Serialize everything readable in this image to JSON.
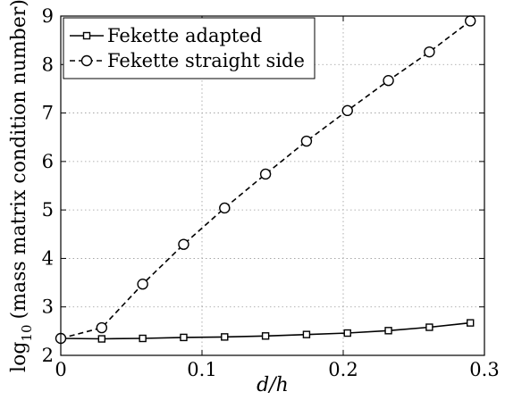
{
  "chart_data": {
    "type": "line",
    "title": "",
    "xlabel": "d/h",
    "ylabel": "log10 (mass matrix condition number)",
    "ylabel_main": "log",
    "ylabel_sub": "10",
    "ylabel_rest": "(mass matrix condition number)",
    "xlim": [
      0,
      0.3
    ],
    "ylim": [
      2,
      9
    ],
    "xticks": [
      0,
      0.1,
      0.2,
      0.3
    ],
    "xtick_labels": [
      "0",
      "0.1",
      "0.2",
      "0.3"
    ],
    "yticks": [
      2,
      3,
      4,
      5,
      6,
      7,
      8,
      9
    ],
    "ytick_labels": [
      "2",
      "3",
      "4",
      "5",
      "6",
      "7",
      "8",
      "9"
    ],
    "grid": true,
    "legend_position": "top-left",
    "x": [
      0,
      0.029,
      0.058,
      0.087,
      0.116,
      0.145,
      0.174,
      0.203,
      0.232,
      0.261,
      0.29
    ],
    "series": [
      {
        "name": "Fekette adapted",
        "marker": "square",
        "line_style": "solid",
        "color": "#000000",
        "values": [
          2.35,
          2.34,
          2.35,
          2.37,
          2.38,
          2.4,
          2.43,
          2.46,
          2.51,
          2.58,
          2.67
        ]
      },
      {
        "name": "Fekette straight side",
        "marker": "circle",
        "line_style": "dashed",
        "color": "#000000",
        "values": [
          2.35,
          2.57,
          3.47,
          4.29,
          5.04,
          5.74,
          6.42,
          7.05,
          7.67,
          8.26,
          8.9
        ]
      }
    ]
  }
}
